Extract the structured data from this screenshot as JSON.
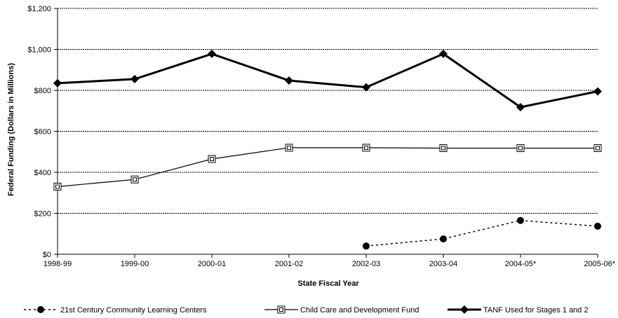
{
  "chart_data": {
    "type": "line",
    "categories": [
      "1998-99",
      "1999-00",
      "2000-01",
      "2001-02",
      "2002-03",
      "2003-04",
      "2004-05*",
      "2005-06*"
    ],
    "xlabel": "State Fiscal Year",
    "ylabel": "Federal Funding (Dollars in Millions)",
    "ylim": [
      0,
      1200
    ],
    "yticks": [
      0,
      200,
      400,
      600,
      800,
      1000,
      1200
    ],
    "ytick_labels": [
      "$0",
      "$200",
      "$400",
      "$600",
      "$800",
      "$1,000",
      "$1,200"
    ],
    "grid": true,
    "legend_position": "bottom",
    "series": [
      {
        "name": "21st Century Community Learning Centers",
        "values": [
          null,
          null,
          null,
          null,
          40,
          75,
          165,
          137
        ],
        "color": "#000000",
        "line_style": "dotted",
        "marker": "circle"
      },
      {
        "name": "Child Care and Development Fund",
        "values": [
          330,
          365,
          465,
          520,
          520,
          518,
          518,
          518
        ],
        "color": "#000000",
        "line_style": "solid-thin",
        "marker": "square"
      },
      {
        "name": "TANF Used for Stages 1 and 2",
        "values": [
          835,
          855,
          978,
          848,
          815,
          978,
          718,
          795
        ],
        "color": "#000000",
        "line_style": "solid-thick",
        "marker": "diamond"
      }
    ]
  }
}
